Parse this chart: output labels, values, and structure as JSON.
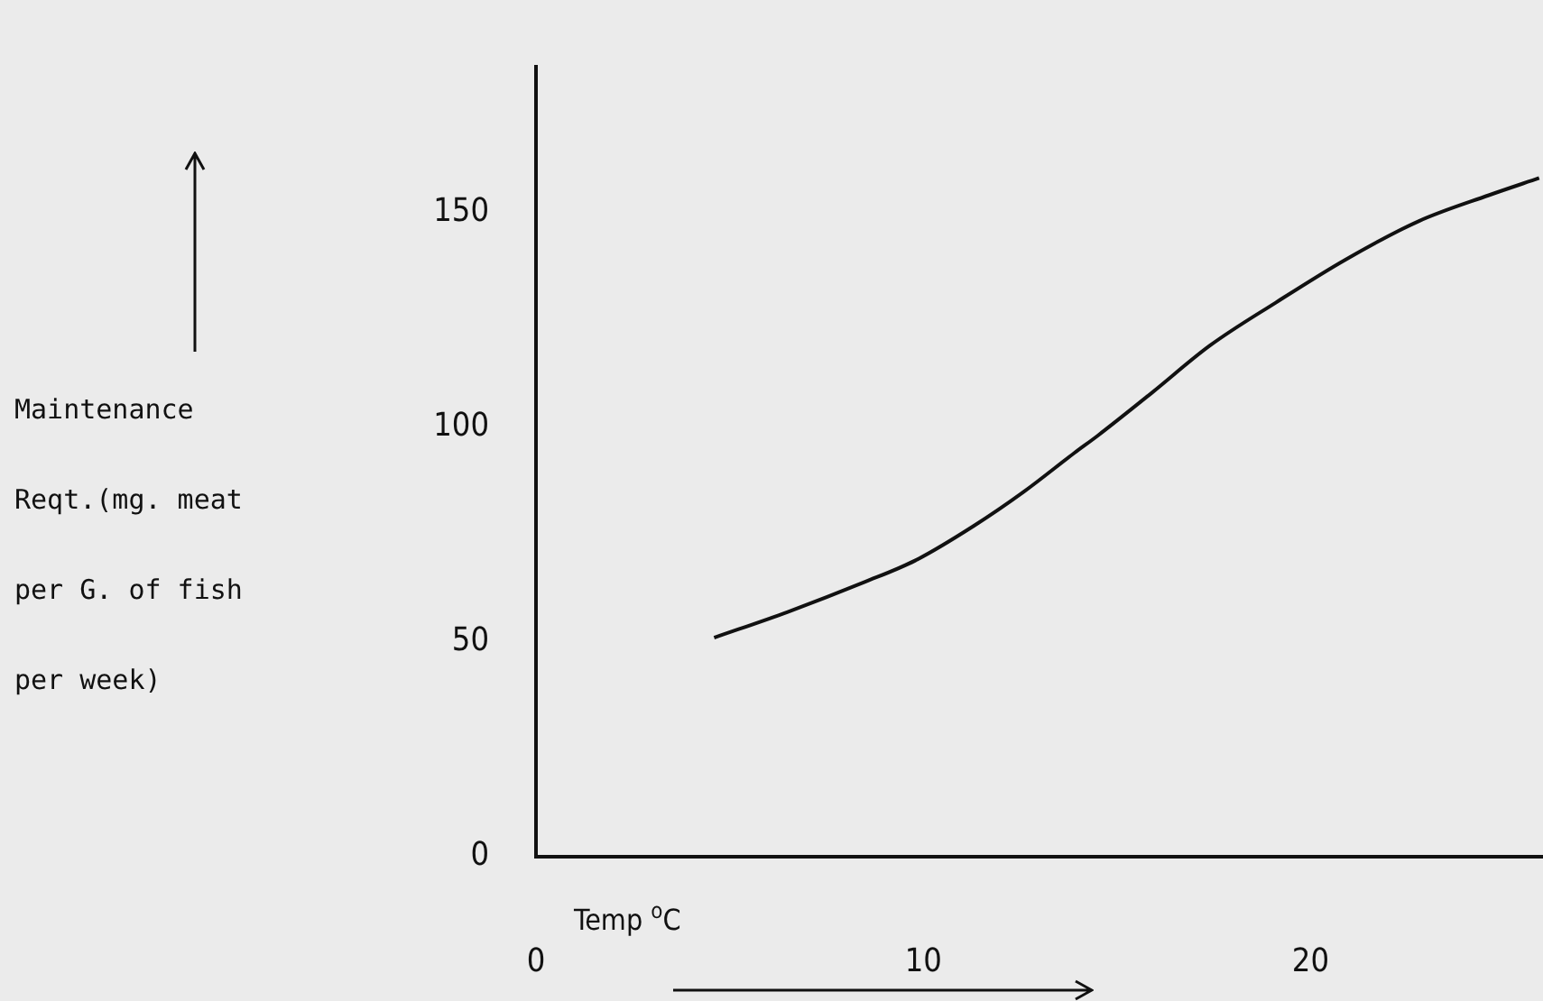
{
  "chart_data": {
    "type": "line",
    "xlabel": "Temp $^{o}$C",
    "ylabel": "Maintenance Reqt.(mg. meat per G. of fish per week)",
    "x": [
      4.6,
      6.5,
      8.5,
      9.8,
      11.3,
      12.6,
      13.9,
      14.5,
      15.9,
      17.4,
      19.1,
      20.9,
      22.8,
      24.6,
      25.9
    ],
    "series": [
      {
        "color": "#111111",
        "values": [
          51,
          57,
          64,
          69,
          77,
          85,
          94,
          98,
          108,
          119,
          129,
          139,
          148,
          154,
          158
        ]
      }
    ],
    "xlim": [
      0,
      26
    ],
    "xticks": [
      0,
      10,
      20
    ],
    "ylim": [
      0,
      184
    ],
    "yticks": [
      0,
      50,
      100,
      150
    ],
    "grid": false,
    "legend": false,
    "marker": "none",
    "line_style": "solid"
  }
}
